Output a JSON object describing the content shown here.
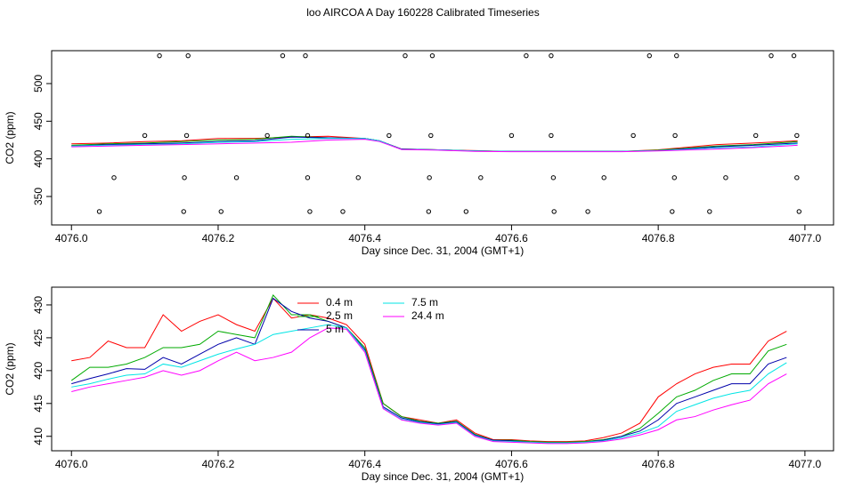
{
  "chart_data": [
    {
      "type": "line",
      "title": "loo AIRCOA A  Day 160228  Calibrated Timeseries",
      "xlabel": "Day since Dec. 31, 2004 (GMT+1)",
      "ylabel": "CO2 (ppm)",
      "xlim": [
        4075.973,
        4077.039
      ],
      "ylim": [
        312.2,
        543.7
      ],
      "xticks": [
        {
          "value": 4076,
          "label": "4076.0"
        },
        4076.2,
        4076.4,
        4076.6,
        4076.8,
        {
          "value": 4077,
          "label": "4077.0"
        }
      ],
      "yticks": [
        350,
        400,
        450,
        500
      ],
      "x": [
        4076.0,
        4076.05,
        4076.1,
        4076.15,
        4076.2,
        4076.25,
        4076.3,
        4076.35,
        4076.4,
        4076.42,
        4076.45,
        4076.5,
        4076.55,
        4076.6,
        4076.7,
        4076.75,
        4076.8,
        4076.88,
        4076.93,
        4076.99
      ],
      "series": [
        {
          "color": "#ff0000",
          "values": [
            420,
            421,
            423,
            424,
            427,
            427,
            429,
            430,
            427,
            424,
            413,
            412,
            411,
            410,
            410,
            410,
            412,
            419,
            421,
            424
          ]
        },
        {
          "color": "#00aa00",
          "values": [
            418,
            420,
            421,
            423,
            425,
            426,
            430,
            428,
            427,
            424,
            413,
            412,
            410.5,
            410,
            410,
            410,
            411.5,
            417,
            419,
            423
          ]
        },
        {
          "color": "#0000aa",
          "values": [
            417,
            419,
            420,
            421,
            423,
            424,
            429,
            428,
            427,
            424,
            413,
            412,
            410.5,
            410,
            410,
            410,
            411,
            416,
            418,
            421
          ]
        },
        {
          "color": "#00e5e5",
          "values": [
            417,
            418,
            419,
            420,
            422,
            423,
            426,
            427,
            427,
            424,
            412.5,
            412,
            410.5,
            410,
            410,
            410,
            411,
            414.5,
            416,
            420
          ]
        },
        {
          "color": "#ff00ff",
          "values": [
            416,
            417,
            418,
            419,
            420,
            421,
            422,
            425,
            426,
            423,
            412.5,
            411.5,
            410,
            409.5,
            409.5,
            409.5,
            410.5,
            413,
            415,
            418
          ]
        }
      ],
      "points": {
        "color": "#000000",
        "x": [
          4076.12,
          4076.159,
          4076.288,
          4076.319,
          4076.455,
          4076.492,
          4076.62,
          4076.654,
          4076.788,
          4076.825,
          4076.954,
          4076.985,
          4076.1,
          4076.157,
          4076.267,
          4076.322,
          4076.433,
          4076.49,
          4076.6,
          4076.654,
          4076.766,
          4076.823,
          4076.933,
          4076.989,
          4076.058,
          4076.154,
          4076.225,
          4076.322,
          4076.391,
          4076.488,
          4076.558,
          4076.657,
          4076.726,
          4076.822,
          4076.892,
          4076.989,
          4076.038,
          4076.153,
          4076.204,
          4076.325,
          4076.37,
          4076.487,
          4076.538,
          4076.658,
          4076.704,
          4076.819,
          4076.87,
          4076.992
        ],
        "values": [
          537,
          537,
          537,
          537,
          537,
          537,
          537,
          537,
          537,
          537,
          537,
          537,
          431,
          431,
          431,
          431,
          431,
          431,
          431,
          431,
          431,
          431,
          431,
          431,
          375,
          375,
          375,
          375,
          375,
          375,
          375,
          375,
          375,
          375,
          375,
          375,
          330,
          330,
          330,
          330,
          330,
          330,
          330,
          330,
          330,
          330,
          330,
          330
        ]
      }
    },
    {
      "type": "line",
      "xlabel": "Day since Dec. 31, 2004 (GMT+1)",
      "ylabel": "CO2 (ppm)",
      "xlim": [
        4075.973,
        4077.039
      ],
      "ylim": [
        407.8,
        432.7
      ],
      "xticks": [
        {
          "value": 4076,
          "label": "4076.0"
        },
        4076.2,
        4076.4,
        4076.6,
        4076.8,
        {
          "value": 4077,
          "label": "4077.0"
        }
      ],
      "yticks": [
        410,
        415,
        420,
        425,
        430
      ],
      "legend": "top",
      "x": [
        4076.0,
        4076.025,
        4076.05,
        4076.075,
        4076.1,
        4076.125,
        4076.15,
        4076.175,
        4076.2,
        4076.225,
        4076.25,
        4076.275,
        4076.3,
        4076.325,
        4076.35,
        4076.375,
        4076.4,
        4076.425,
        4076.45,
        4076.475,
        4076.5,
        4076.525,
        4076.55,
        4076.575,
        4076.6,
        4076.625,
        4076.65,
        4076.675,
        4076.7,
        4076.725,
        4076.75,
        4076.775,
        4076.8,
        4076.825,
        4076.85,
        4076.875,
        4076.9,
        4076.925,
        4076.95,
        4076.975
      ],
      "series": [
        {
          "name": "0.4 m",
          "color": "#ff0000",
          "values": [
            421.5,
            422,
            424.5,
            423.5,
            423.5,
            428.5,
            426,
            427.5,
            428.5,
            427,
            426,
            431,
            428,
            428.5,
            428,
            427,
            424,
            415,
            413,
            412.5,
            412,
            412.5,
            410.5,
            409.5,
            409.5,
            409.3,
            409.2,
            409.2,
            409.3,
            409.8,
            410.5,
            412,
            416,
            418,
            419.5,
            420.5,
            421,
            421,
            424.5,
            426
          ]
        },
        {
          "name": "2.5 m",
          "color": "#00aa00",
          "values": [
            418.5,
            420.5,
            420.5,
            421,
            422,
            423.5,
            423.5,
            424,
            426,
            425.5,
            425,
            431.5,
            428.5,
            428.5,
            427.5,
            426.5,
            423.5,
            415,
            413,
            412.3,
            412,
            412.3,
            410.3,
            409.4,
            409.4,
            409.2,
            409.1,
            409.1,
            409.2,
            409.5,
            410,
            411.2,
            413.5,
            416,
            417,
            418.5,
            419.5,
            419.5,
            423,
            424
          ]
        },
        {
          "name": "5 m",
          "color": "#0000aa",
          "values": [
            418,
            418.8,
            419.5,
            420.3,
            420.2,
            422,
            421,
            422.5,
            424,
            425,
            424,
            431,
            429,
            428,
            427.5,
            426.5,
            423.2,
            414.5,
            412.8,
            412.2,
            411.9,
            412.2,
            410.2,
            409.4,
            409.3,
            409.1,
            409,
            409,
            409.1,
            409.4,
            410,
            410.8,
            412.5,
            415,
            416,
            417,
            418,
            418,
            421,
            422
          ]
        },
        {
          "name": "7.5 m",
          "color": "#00e5e5",
          "values": [
            417.5,
            418,
            418.7,
            419.3,
            419.5,
            421,
            420.5,
            421.5,
            422.5,
            423.3,
            424,
            425.5,
            426,
            426.5,
            427,
            426.5,
            423,
            414.3,
            412.6,
            412.1,
            411.8,
            412.1,
            410.1,
            409.3,
            409.2,
            409.1,
            409,
            409,
            409.1,
            409.3,
            409.8,
            410.5,
            411.5,
            413.8,
            414.8,
            415.8,
            416.5,
            417,
            419.5,
            421.2
          ]
        },
        {
          "name": "24.4 m",
          "color": "#ff00ff",
          "values": [
            416.8,
            417.5,
            418,
            418.5,
            419,
            420,
            419.3,
            420,
            421.5,
            422.8,
            421.5,
            422,
            422.8,
            425,
            426.5,
            426.3,
            422.8,
            414.2,
            412.5,
            412,
            411.7,
            412,
            410,
            409.2,
            409.1,
            409,
            408.9,
            408.9,
            409,
            409.2,
            409.6,
            410.2,
            411,
            412.5,
            413,
            414,
            414.8,
            415.5,
            418,
            419.5
          ]
        }
      ]
    }
  ]
}
